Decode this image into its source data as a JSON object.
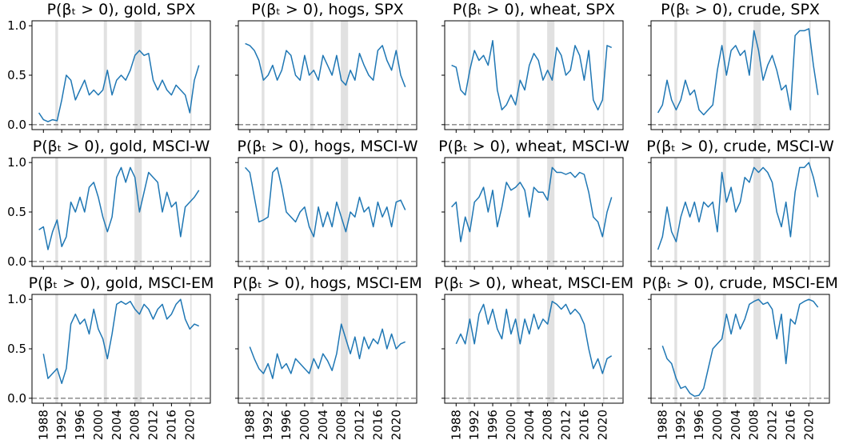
{
  "colors": {
    "line": "#1f77b4",
    "band": "#d9d9d9",
    "zero_line": "#808080"
  },
  "x_ticks": [
    "1988",
    "1992",
    "1996",
    "2000",
    "2004",
    "2008",
    "2012",
    "2016",
    "2020"
  ],
  "y_ticks": [
    "0.0",
    "0.5",
    "1.0"
  ],
  "recession_bands": [
    [
      1990.6,
      1991.2
    ],
    [
      2001.2,
      2001.9
    ],
    [
      2007.9,
      2009.5
    ],
    [
      2020.1,
      2020.4
    ]
  ],
  "chart_data": {
    "type": "line",
    "layout": "3x4 grid, shared x (dates) and y (probability) axes",
    "xlim": [
      1985.5,
      2024.5
    ],
    "ylim": [
      -0.05,
      1.05
    ],
    "zero_line": "dashed grey at y = 0",
    "panels": [
      {
        "title": "P(βₜ > 0), gold, SPX",
        "x": [
          1987,
          1988,
          1989,
          1990,
          1991,
          1992,
          1993,
          1994,
          1995,
          1996,
          1997,
          1998,
          1999,
          2000,
          2001,
          2002,
          2003,
          2004,
          2005,
          2006,
          2007,
          2008,
          2009,
          2010,
          2011,
          2012,
          2013,
          2014,
          2015,
          2016,
          2017,
          2018,
          2019,
          2020,
          2021,
          2022
        ],
        "y": [
          0.12,
          0.05,
          0.03,
          0.05,
          0.04,
          0.25,
          0.5,
          0.45,
          0.25,
          0.35,
          0.45,
          0.3,
          0.35,
          0.3,
          0.35,
          0.55,
          0.3,
          0.45,
          0.5,
          0.45,
          0.55,
          0.7,
          0.75,
          0.7,
          0.72,
          0.45,
          0.35,
          0.45,
          0.35,
          0.3,
          0.4,
          0.35,
          0.3,
          0.12,
          0.45,
          0.6
        ]
      },
      {
        "title": "P(βₜ > 0), hogs, SPX",
        "x": [
          1987,
          1988,
          1989,
          1990,
          1991,
          1992,
          1993,
          1994,
          1995,
          1996,
          1997,
          1998,
          1999,
          2000,
          2001,
          2002,
          2003,
          2004,
          2005,
          2006,
          2007,
          2008,
          2009,
          2010,
          2011,
          2012,
          2013,
          2014,
          2015,
          2016,
          2017,
          2018,
          2019,
          2020,
          2021,
          2022
        ],
        "y": [
          0.82,
          0.8,
          0.75,
          0.65,
          0.45,
          0.5,
          0.6,
          0.45,
          0.55,
          0.75,
          0.7,
          0.5,
          0.45,
          0.7,
          0.5,
          0.55,
          0.45,
          0.7,
          0.6,
          0.5,
          0.7,
          0.45,
          0.4,
          0.55,
          0.45,
          0.72,
          0.6,
          0.5,
          0.45,
          0.75,
          0.8,
          0.65,
          0.55,
          0.75,
          0.5,
          0.38
        ]
      },
      {
        "title": "P(βₜ > 0), wheat, SPX",
        "x": [
          1987,
          1988,
          1989,
          1990,
          1991,
          1992,
          1993,
          1994,
          1995,
          1996,
          1997,
          1998,
          1999,
          2000,
          2001,
          2002,
          2003,
          2004,
          2005,
          2006,
          2007,
          2008,
          2009,
          2010,
          2011,
          2012,
          2013,
          2014,
          2015,
          2016,
          2017,
          2018,
          2019,
          2020,
          2021,
          2022
        ],
        "y": [
          0.6,
          0.58,
          0.35,
          0.3,
          0.55,
          0.75,
          0.65,
          0.7,
          0.6,
          0.85,
          0.35,
          0.15,
          0.2,
          0.3,
          0.2,
          0.45,
          0.35,
          0.6,
          0.72,
          0.65,
          0.45,
          0.55,
          0.45,
          0.78,
          0.7,
          0.5,
          0.55,
          0.8,
          0.7,
          0.45,
          0.75,
          0.25,
          0.15,
          0.25,
          0.8,
          0.78
        ]
      },
      {
        "title": "P(βₜ > 0), crude, SPX",
        "x": [
          1987,
          1988,
          1989,
          1990,
          1991,
          1992,
          1993,
          1994,
          1995,
          1996,
          1997,
          1998,
          1999,
          2000,
          2001,
          2002,
          2003,
          2004,
          2005,
          2006,
          2007,
          2008,
          2009,
          2010,
          2011,
          2012,
          2013,
          2014,
          2015,
          2016,
          2017,
          2018,
          2019,
          2020,
          2021,
          2022
        ],
        "y": [
          0.12,
          0.2,
          0.45,
          0.25,
          0.15,
          0.25,
          0.45,
          0.3,
          0.35,
          0.15,
          0.1,
          0.15,
          0.2,
          0.55,
          0.8,
          0.5,
          0.75,
          0.8,
          0.7,
          0.75,
          0.5,
          0.95,
          0.75,
          0.45,
          0.6,
          0.7,
          0.55,
          0.35,
          0.4,
          0.15,
          0.9,
          0.95,
          0.95,
          0.97,
          0.6,
          0.3
        ]
      },
      {
        "title": "P(βₜ > 0), gold, MSCI-W",
        "x": [
          1987,
          1988,
          1989,
          1990,
          1991,
          1992,
          1993,
          1994,
          1995,
          1996,
          1997,
          1998,
          1999,
          2000,
          2001,
          2002,
          2003,
          2004,
          2005,
          2006,
          2007,
          2008,
          2009,
          2010,
          2011,
          2012,
          2013,
          2014,
          2015,
          2016,
          2017,
          2018,
          2019,
          2020,
          2021,
          2022
        ],
        "y": [
          0.32,
          0.35,
          0.12,
          0.3,
          0.42,
          0.15,
          0.25,
          0.6,
          0.5,
          0.65,
          0.5,
          0.75,
          0.8,
          0.65,
          0.45,
          0.3,
          0.45,
          0.85,
          0.95,
          0.8,
          0.95,
          0.85,
          0.5,
          0.7,
          0.9,
          0.85,
          0.8,
          0.5,
          0.7,
          0.55,
          0.6,
          0.25,
          0.55,
          0.6,
          0.65,
          0.72
        ]
      },
      {
        "title": "P(βₜ > 0), hogs, MSCI-W",
        "x": [
          1987,
          1988,
          1989,
          1990,
          1991,
          1992,
          1993,
          1994,
          1995,
          1996,
          1997,
          1998,
          1999,
          2000,
          2001,
          2002,
          2003,
          2004,
          2005,
          2006,
          2007,
          2008,
          2009,
          2010,
          2011,
          2012,
          2013,
          2014,
          2015,
          2016,
          2017,
          2018,
          2019,
          2020,
          2021,
          2022
        ],
        "y": [
          0.95,
          0.9,
          0.65,
          0.4,
          0.42,
          0.45,
          0.9,
          0.95,
          0.75,
          0.5,
          0.45,
          0.4,
          0.5,
          0.55,
          0.35,
          0.25,
          0.55,
          0.35,
          0.5,
          0.35,
          0.6,
          0.45,
          0.3,
          0.5,
          0.45,
          0.65,
          0.5,
          0.55,
          0.35,
          0.6,
          0.45,
          0.55,
          0.35,
          0.6,
          0.62,
          0.52
        ]
      },
      {
        "title": "P(βₜ > 0), wheat, MSCI-W",
        "x": [
          1987,
          1988,
          1989,
          1990,
          1991,
          1992,
          1993,
          1994,
          1995,
          1996,
          1997,
          1998,
          1999,
          2000,
          2001,
          2002,
          2003,
          2004,
          2005,
          2006,
          2007,
          2008,
          2009,
          2010,
          2011,
          2012,
          2013,
          2014,
          2015,
          2016,
          2017,
          2018,
          2019,
          2020,
          2021,
          2022
        ],
        "y": [
          0.55,
          0.6,
          0.2,
          0.45,
          0.3,
          0.6,
          0.65,
          0.75,
          0.5,
          0.72,
          0.35,
          0.55,
          0.8,
          0.72,
          0.75,
          0.8,
          0.72,
          0.45,
          0.75,
          0.7,
          0.7,
          0.62,
          0.95,
          0.9,
          0.9,
          0.88,
          0.9,
          0.85,
          0.9,
          0.88,
          0.7,
          0.45,
          0.4,
          0.25,
          0.5,
          0.65
        ]
      },
      {
        "title": "P(βₜ > 0), crude, MSCI-W",
        "x": [
          1987,
          1988,
          1989,
          1990,
          1991,
          1992,
          1993,
          1994,
          1995,
          1996,
          1997,
          1998,
          1999,
          2000,
          2001,
          2002,
          2003,
          2004,
          2005,
          2006,
          2007,
          2008,
          2009,
          2010,
          2011,
          2012,
          2013,
          2014,
          2015,
          2016,
          2017,
          2018,
          2019,
          2020,
          2021,
          2022
        ],
        "y": [
          0.12,
          0.25,
          0.55,
          0.3,
          0.2,
          0.45,
          0.6,
          0.45,
          0.6,
          0.4,
          0.6,
          0.55,
          0.6,
          0.3,
          0.9,
          0.6,
          0.75,
          0.5,
          0.6,
          0.85,
          0.8,
          0.95,
          0.9,
          0.95,
          0.9,
          0.8,
          0.5,
          0.35,
          0.6,
          0.25,
          0.7,
          0.95,
          0.95,
          1.0,
          0.85,
          0.65
        ]
      },
      {
        "title": "P(βₜ > 0), gold, MSCI-EM",
        "x": [
          1988,
          1989,
          1990,
          1991,
          1992,
          1993,
          1994,
          1995,
          1996,
          1997,
          1998,
          1999,
          2000,
          2001,
          2002,
          2003,
          2004,
          2005,
          2006,
          2007,
          2008,
          2009,
          2010,
          2011,
          2012,
          2013,
          2014,
          2015,
          2016,
          2017,
          2018,
          2019,
          2020,
          2021,
          2022
        ],
        "y": [
          0.45,
          0.2,
          0.25,
          0.3,
          0.15,
          0.3,
          0.75,
          0.85,
          0.75,
          0.8,
          0.65,
          0.9,
          0.7,
          0.6,
          0.4,
          0.65,
          0.95,
          0.98,
          0.95,
          0.98,
          0.9,
          0.85,
          0.95,
          0.9,
          0.8,
          0.9,
          0.95,
          0.8,
          0.85,
          0.95,
          1.0,
          0.8,
          0.7,
          0.75,
          0.73
        ]
      },
      {
        "title": "P(βₜ > 0), hogs, MSCI-EM",
        "x": [
          1988,
          1989,
          1990,
          1991,
          1992,
          1993,
          1994,
          1995,
          1996,
          1997,
          1998,
          1999,
          2000,
          2001,
          2002,
          2003,
          2004,
          2005,
          2006,
          2007,
          2008,
          2009,
          2010,
          2011,
          2012,
          2013,
          2014,
          2015,
          2016,
          2017,
          2018,
          2019,
          2020,
          2021,
          2022
        ],
        "y": [
          0.52,
          0.4,
          0.3,
          0.25,
          0.35,
          0.2,
          0.45,
          0.3,
          0.35,
          0.25,
          0.4,
          0.35,
          0.3,
          0.25,
          0.4,
          0.3,
          0.45,
          0.38,
          0.28,
          0.45,
          0.75,
          0.6,
          0.45,
          0.62,
          0.4,
          0.62,
          0.5,
          0.6,
          0.55,
          0.7,
          0.5,
          0.65,
          0.5,
          0.55,
          0.57
        ]
      },
      {
        "title": "P(βₜ > 0), wheat, MSCI-EM",
        "x": [
          1988,
          1989,
          1990,
          1991,
          1992,
          1993,
          1994,
          1995,
          1996,
          1997,
          1998,
          1999,
          2000,
          2001,
          2002,
          2003,
          2004,
          2005,
          2006,
          2007,
          2008,
          2009,
          2010,
          2011,
          2012,
          2013,
          2014,
          2015,
          2016,
          2017,
          2018,
          2019,
          2020,
          2021,
          2022
        ],
        "y": [
          0.55,
          0.65,
          0.55,
          0.8,
          0.55,
          0.85,
          0.95,
          0.75,
          0.9,
          0.7,
          0.6,
          0.9,
          0.65,
          0.8,
          0.55,
          0.8,
          0.65,
          0.85,
          0.7,
          0.8,
          0.75,
          0.98,
          0.95,
          0.9,
          0.95,
          0.85,
          0.9,
          0.85,
          0.75,
          0.5,
          0.3,
          0.4,
          0.25,
          0.4,
          0.43
        ]
      },
      {
        "title": "P(βₜ > 0), crude, MSCI-EM",
        "x": [
          1988,
          1989,
          1990,
          1991,
          1992,
          1993,
          1994,
          1995,
          1996,
          1997,
          1998,
          1999,
          2000,
          2001,
          2002,
          2003,
          2004,
          2005,
          2006,
          2007,
          2008,
          2009,
          2010,
          2011,
          2012,
          2013,
          2014,
          2015,
          2016,
          2017,
          2018,
          2019,
          2020,
          2021,
          2022
        ],
        "y": [
          0.53,
          0.4,
          0.35,
          0.2,
          0.1,
          0.12,
          0.05,
          0.02,
          0.03,
          0.1,
          0.3,
          0.5,
          0.55,
          0.6,
          0.85,
          0.65,
          0.85,
          0.7,
          0.8,
          0.95,
          0.98,
          1.0,
          0.95,
          0.97,
          0.9,
          0.6,
          0.85,
          0.35,
          0.8,
          0.75,
          0.95,
          0.98,
          1.0,
          0.98,
          0.92
        ]
      }
    ]
  }
}
